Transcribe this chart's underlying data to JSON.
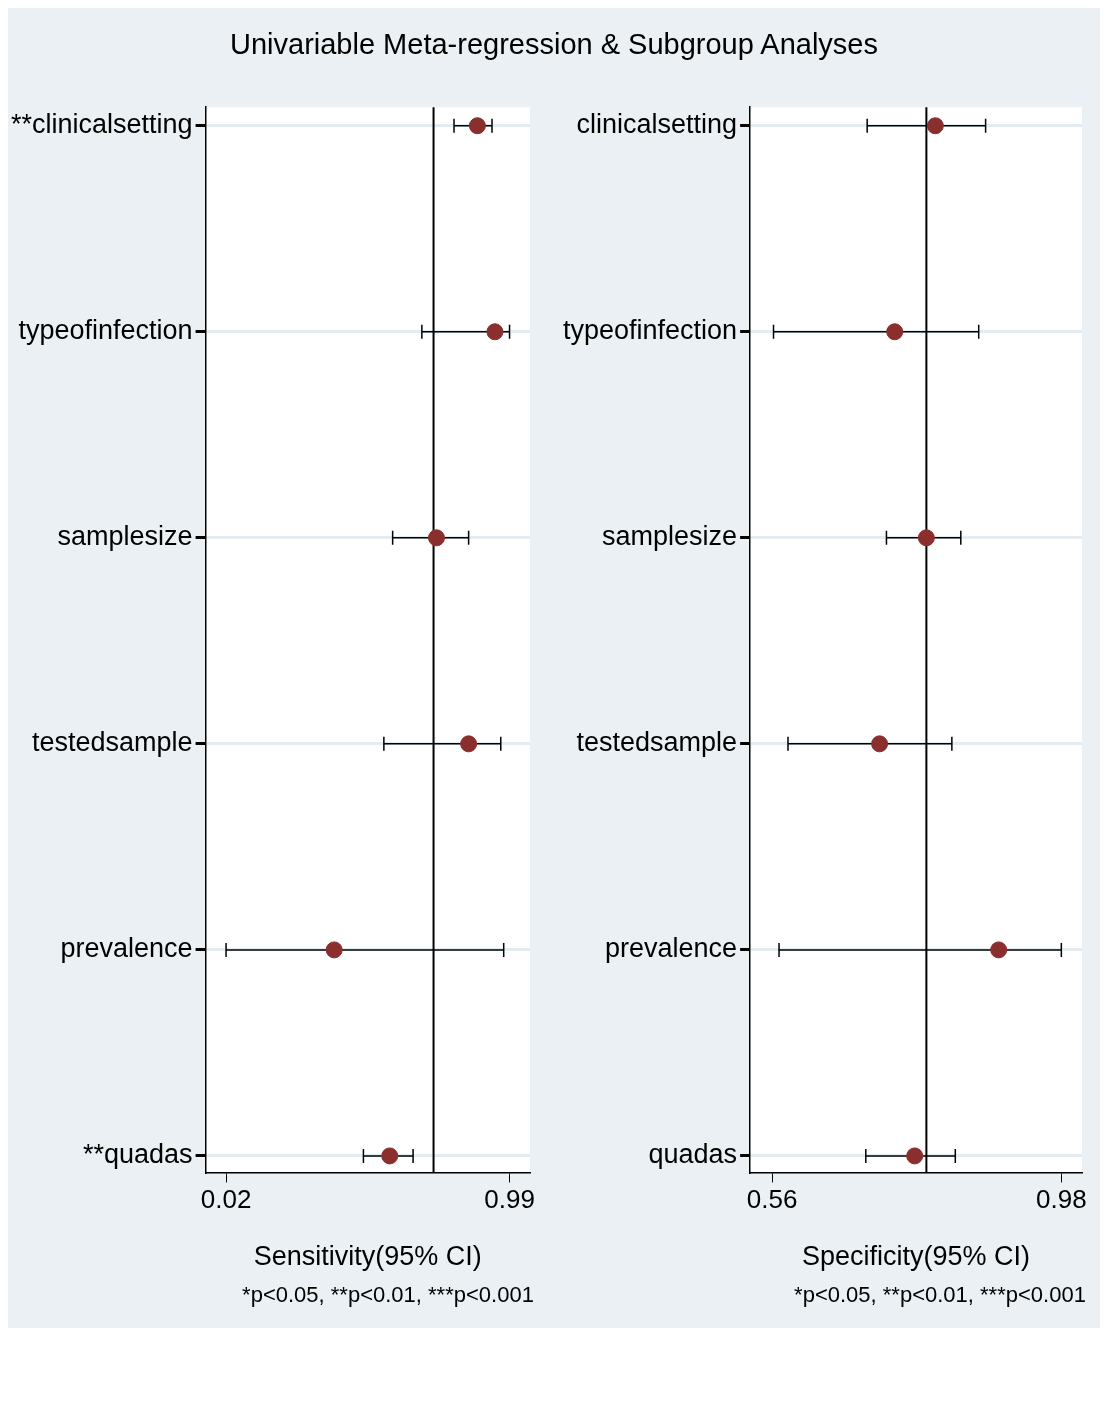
{
  "chart_data": [
    {
      "type": "scatter",
      "orientation": "horizontal",
      "title": "Univariable Meta-regression & Subgroup Analyses",
      "categories": [
        "**clinicalsetting",
        "typeofinfection",
        "samplesize",
        "testedsample",
        "prevalence",
        "**quadas"
      ],
      "values": [
        0.88,
        0.94,
        0.74,
        0.85,
        0.39,
        0.58
      ],
      "errors": [
        [
          0.8,
          0.93
        ],
        [
          0.69,
          0.99
        ],
        [
          0.59,
          0.85
        ],
        [
          0.56,
          0.96
        ],
        [
          0.02,
          0.97
        ],
        [
          0.49,
          0.66
        ]
      ],
      "color": "#8b2e2e",
      "marker": "circle",
      "grid": "y",
      "xlim": [
        -0.05,
        1.06
      ],
      "xticks": [
        0.02,
        0.99
      ],
      "ref_lines": [
        {
          "axis": "x",
          "value": 0.73,
          "color": "#000000"
        }
      ],
      "xlabel": "Sensitivity(95% CI)",
      "annotations": [
        "*p<0.05, **p<0.01, ***p<0.001"
      ]
    },
    {
      "type": "scatter",
      "orientation": "horizontal",
      "categories": [
        "clinicalsetting",
        "typeofinfection",
        "samplesize",
        "testedsample",
        "prevalence",
        "quadas"
      ],
      "values": [
        0.797,
        0.738,
        0.784,
        0.716,
        0.889,
        0.767
      ],
      "errors": [
        [
          0.698,
          0.87
        ],
        [
          0.562,
          0.86
        ],
        [
          0.726,
          0.834
        ],
        [
          0.583,
          0.821
        ],
        [
          0.57,
          0.98
        ],
        [
          0.696,
          0.826
        ]
      ],
      "color": "#8b2e2e",
      "marker": "circle",
      "grid": "y",
      "xlim": [
        0.528,
        1.01
      ],
      "xticks": [
        0.56,
        0.98
      ],
      "ref_lines": [
        {
          "axis": "x",
          "value": 0.784,
          "color": "#000000"
        }
      ],
      "xlabel": "Specificity(95% CI)",
      "annotations": [
        "*p<0.05, **p<0.01, ***p<0.001"
      ]
    }
  ]
}
